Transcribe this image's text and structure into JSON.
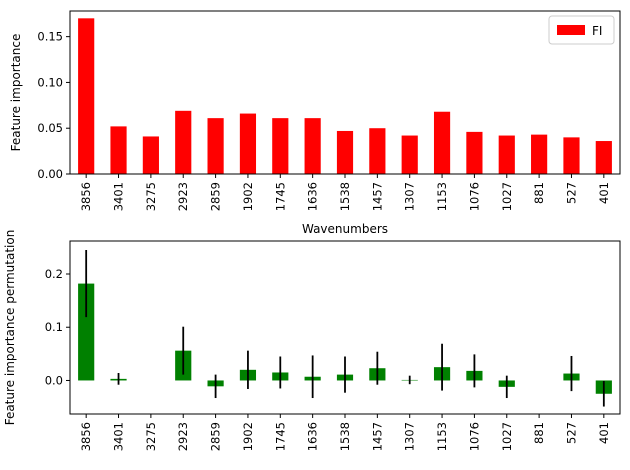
{
  "chart_data": [
    {
      "type": "bar",
      "categories": [
        "3856",
        "3401",
        "3275",
        "2923",
        "2859",
        "1902",
        "1745",
        "1636",
        "1538",
        "1457",
        "1307",
        "1153",
        "1076",
        "1027",
        "881",
        "527",
        "401"
      ],
      "series": [
        {
          "name": "FI",
          "values": [
            0.17,
            0.052,
            0.041,
            0.069,
            0.061,
            0.066,
            0.061,
            0.061,
            0.047,
            0.05,
            0.042,
            0.068,
            0.046,
            0.042,
            0.043,
            0.04,
            0.036
          ],
          "color": "#ff0000"
        }
      ],
      "xlabel": "Wavenumbers",
      "ylabel": "Feature importance",
      "ylim": [
        0,
        0.178
      ],
      "yticks": [
        "0.00",
        "0.05",
        "0.10",
        "0.15"
      ],
      "ytick_values": [
        0,
        0.05,
        0.1,
        0.15
      ],
      "legend": "top-right",
      "grid": false
    },
    {
      "type": "bar",
      "categories": [
        "3856",
        "3401",
        "3275",
        "2923",
        "2859",
        "1902",
        "1745",
        "1636",
        "1538",
        "1457",
        "1307",
        "1153",
        "1076",
        "1027",
        "881",
        "527",
        "401"
      ],
      "series": [
        {
          "values": [
            0.182,
            0.003,
            0.0,
            0.056,
            -0.011,
            0.02,
            0.015,
            0.007,
            0.011,
            0.023,
            0.001,
            0.025,
            0.018,
            -0.012,
            0.0,
            0.013,
            -0.025
          ],
          "errors": [
            0.063,
            0.011,
            0.0,
            0.045,
            0.022,
            0.036,
            0.03,
            0.04,
            0.034,
            0.031,
            0.008,
            0.044,
            0.031,
            0.021,
            0.0,
            0.033,
            0.024
          ],
          "color": "#008000"
        }
      ],
      "ylabel": "Feature importance permutation",
      "ylim": [
        -0.063,
        0.262
      ],
      "yticks": [
        "0.0",
        "0.1",
        "0.2"
      ],
      "ytick_values": [
        0,
        0.1,
        0.2
      ],
      "grid": false
    }
  ]
}
